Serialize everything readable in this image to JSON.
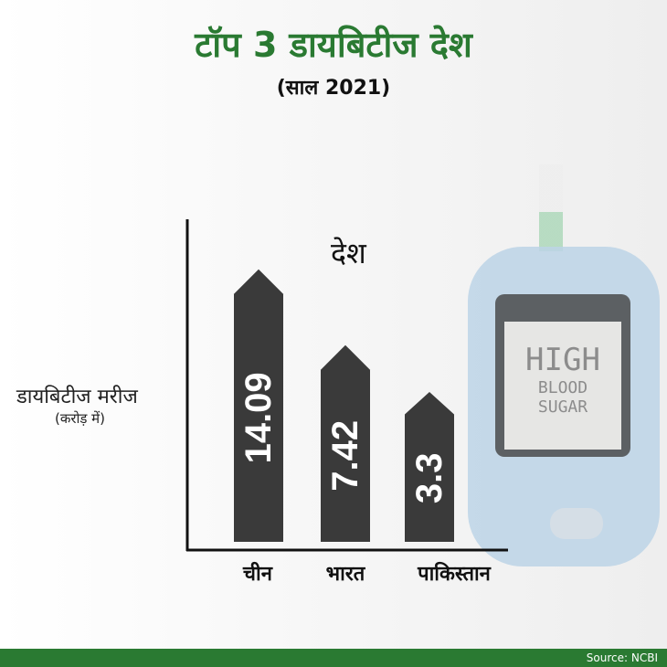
{
  "title": "टॉप 3 डायबिटीज देश",
  "subtitle": "(साल 2021)",
  "source": "Source: NCBI",
  "colors": {
    "title": "#2a7a32",
    "bar": "#3a3a3a",
    "footer": "#2a7a32"
  },
  "meter_text": [
    "HIGH",
    "BLOOD",
    "SUGAR"
  ],
  "chart_data": {
    "type": "bar",
    "title": "देश",
    "ylabel": "डायबिटीज मरीज",
    "ylabel_unit": "(करोड़ में)",
    "categories": [
      "चीन",
      "भारत",
      "पाकिस्तान"
    ],
    "values": [
      14.09,
      7.42,
      3.3
    ],
    "data_labels": [
      "14.09",
      "7.42",
      "3.3"
    ],
    "grid": false
  }
}
